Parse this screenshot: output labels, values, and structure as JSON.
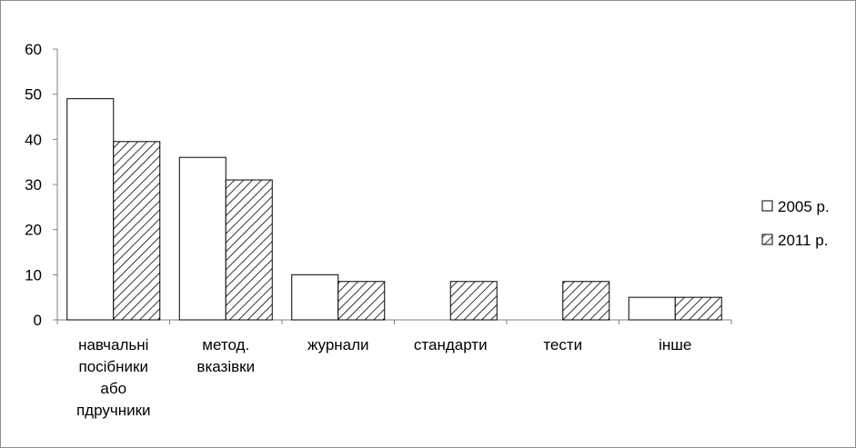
{
  "chart_data": {
    "type": "bar",
    "title": "",
    "xlabel": "",
    "ylabel": "",
    "ylim": [
      0,
      60
    ],
    "yticks": [
      "0",
      "10",
      "20",
      "30",
      "40",
      "50",
      "60"
    ],
    "categories": [
      [
        "навчальні",
        "посібники",
        "або",
        "пдручники"
      ],
      [
        "метод.",
        "вказівки"
      ],
      [
        "журнали"
      ],
      [
        "стандарти"
      ],
      [
        "тести"
      ],
      [
        "інше"
      ]
    ],
    "series": [
      {
        "name": "2005 р.",
        "values": [
          49,
          36,
          10,
          0,
          0,
          5
        ],
        "fill": "white",
        "color": "#ffffff"
      },
      {
        "name": "2011 р.",
        "values": [
          39.5,
          31,
          8.5,
          8.5,
          8.5,
          5
        ],
        "fill": "hatch",
        "color": "#000000"
      }
    ],
    "grid": false,
    "legend_position": "right"
  }
}
